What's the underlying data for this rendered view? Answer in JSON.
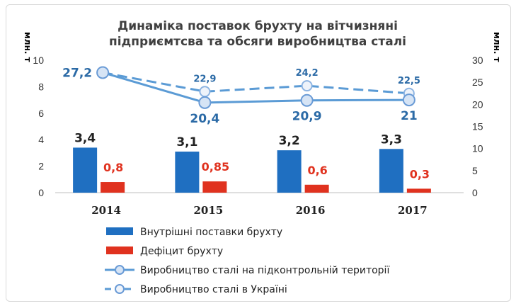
{
  "chart_data": {
    "type": "bar",
    "title": [
      "Динаміка поставок брухту на вітчизняні",
      "підприємтсва та обсяги виробництва сталі"
    ],
    "ylabel_left": "млн. т",
    "ylabel_right": "млн. т",
    "ylim_left": [
      0,
      10
    ],
    "ylim_right": [
      0,
      30
    ],
    "yticks_left": [
      "0",
      "2",
      "4",
      "6",
      "8",
      "10"
    ],
    "yticks_right": [
      "0",
      "5",
      "10",
      "15",
      "20",
      "25",
      "30"
    ],
    "categories": [
      "2014",
      "2015",
      "2016",
      "2017"
    ],
    "series": [
      {
        "name": "Внутрішні поставки брухту",
        "kind": "bar",
        "axis": "left",
        "color": "#1f6fc1",
        "values": [
          3.4,
          3.1,
          3.2,
          3.3
        ],
        "labels": [
          "3,4",
          "3,1",
          "3,2",
          "3,3"
        ]
      },
      {
        "name": "Дефіцит брухту",
        "kind": "bar",
        "axis": "left",
        "color": "#e0321f",
        "values": [
          0.8,
          0.85,
          0.6,
          0.3
        ],
        "labels": [
          "0,8",
          "0,85",
          "0,6",
          "0,3"
        ]
      },
      {
        "name": "Виробництво сталі на підконтрольній території",
        "kind": "line",
        "axis": "right",
        "color": "#5b9bd5",
        "values": [
          27.2,
          20.4,
          20.9,
          21
        ],
        "labels": [
          "27,2",
          "20,4",
          "20,9",
          "21"
        ]
      },
      {
        "name": "Виробництво сталі в Україні",
        "kind": "dashed-line",
        "axis": "right",
        "color": "#5b9bd5",
        "values": [
          27.2,
          22.9,
          24.2,
          22.5
        ],
        "labels": [
          "",
          "22,9",
          "24,2",
          "22,5"
        ]
      }
    ],
    "grid": false,
    "legend": "bottom"
  }
}
